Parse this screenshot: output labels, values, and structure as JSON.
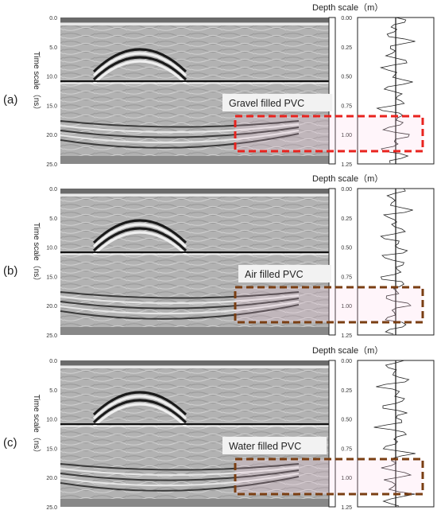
{
  "panels": [
    {
      "label": "(a)",
      "time_axis_label": "Time scale（ns）",
      "time_ticks": [
        "0.0",
        "5.0",
        "10.0",
        "15.0",
        "20.0",
        "25.0"
      ],
      "depth_title": "Depth scale（m）",
      "depth_ticks": [
        "0.00",
        "0.25",
        "0.50",
        "0.75",
        "1.00",
        "1.25"
      ],
      "annotation": "Gravel filled PVC",
      "box_color": "#e8231e"
    },
    {
      "label": "(b)",
      "time_axis_label": "Time scale（ns）",
      "time_ticks": [
        "0.0",
        "5.0",
        "10.0",
        "15.0",
        "20.0",
        "25.0"
      ],
      "depth_title": "Depth scale（m）",
      "depth_ticks": [
        "0.00",
        "0.25",
        "0.50",
        "0.75",
        "1.00",
        "1.25"
      ],
      "annotation": "Air filled PVC",
      "box_color": "#7a3e12"
    },
    {
      "label": "(c)",
      "time_axis_label": "Time scale（ns）",
      "time_ticks": [
        "0.0",
        "5.0",
        "10.0",
        "15.0",
        "20.0",
        "25.0"
      ],
      "depth_title": "Depth scale（m）",
      "depth_ticks": [
        "0.00",
        "0.25",
        "0.50",
        "0.75",
        "1.00",
        "1.25"
      ],
      "annotation": "Water filled PVC",
      "box_color": "#7a3e12"
    }
  ]
}
